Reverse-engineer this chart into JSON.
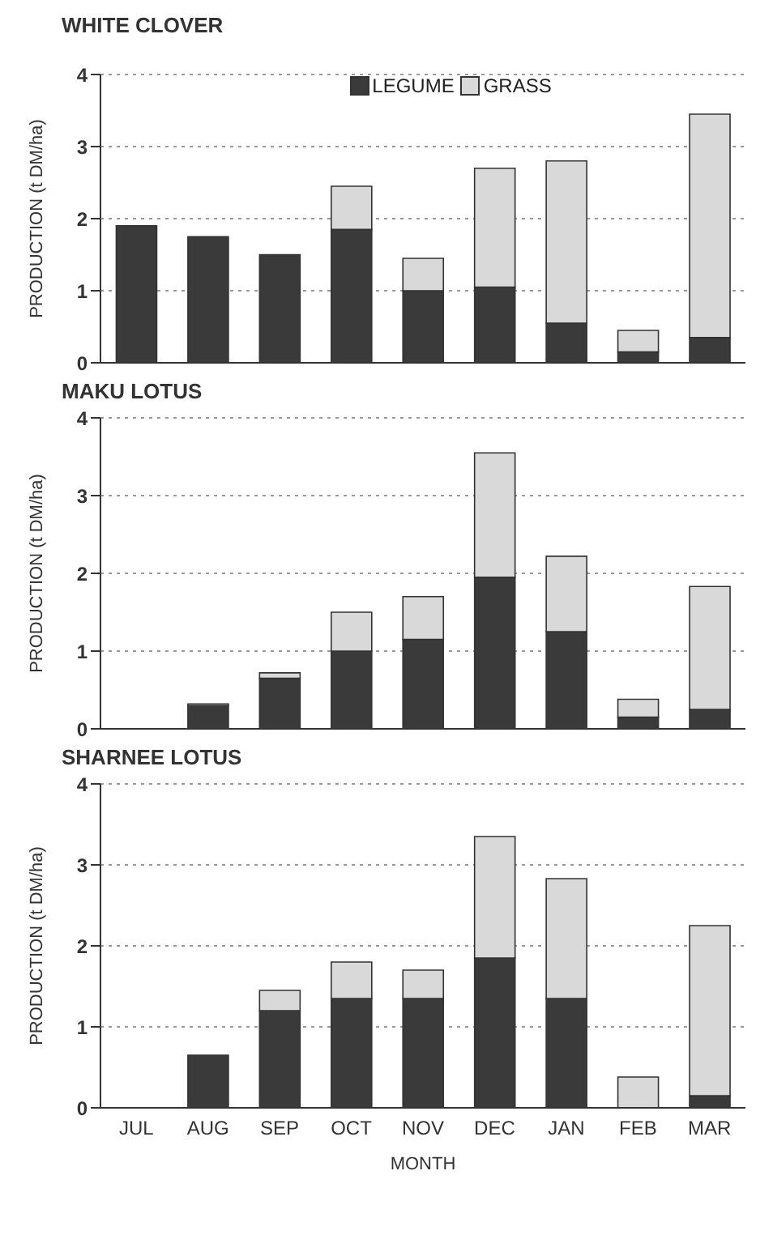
{
  "chart_data": [
    {
      "type": "bar",
      "title": "WHITE CLOVER",
      "ylabel": "PRODUCTION (t DM/ha)",
      "categories": [
        null,
        null,
        null,
        null,
        null,
        null,
        null,
        null,
        null
      ],
      "stacked": true,
      "ylim": [
        0,
        4
      ],
      "yticks": [
        0,
        1,
        2,
        3,
        4
      ],
      "grid": "y",
      "legend": "top",
      "tick_labels": "y",
      "series": [
        {
          "name": "LEGUME",
          "color": "#3a3a3a",
          "values": [
            1.9,
            1.75,
            1.5,
            1.85,
            1.0,
            1.05,
            0.55,
            0.15,
            0.35
          ]
        },
        {
          "name": "GRASS",
          "color": "#d9d9d9",
          "values": [
            0,
            0,
            0,
            0.6,
            0.45,
            1.65,
            2.25,
            0.3,
            3.1
          ]
        }
      ]
    },
    {
      "type": "bar",
      "title": "MAKU LOTUS",
      "ylabel": "PRODUCTION (t DM/ha)",
      "categories": [
        null,
        null,
        null,
        null,
        null,
        null,
        null,
        null,
        null
      ],
      "stacked": true,
      "ylim": [
        0,
        4
      ],
      "yticks": [
        0,
        1,
        2,
        3,
        4
      ],
      "grid": "y",
      "tick_labels": "y",
      "series": [
        {
          "color": "#3a3a3a",
          "values": [
            0,
            0.3,
            0.65,
            1.0,
            1.15,
            1.95,
            1.25,
            0.15,
            0.25
          ]
        },
        {
          "color": "#d9d9d9",
          "values": [
            0,
            0.02,
            0.07,
            0.5,
            0.55,
            1.6,
            0.97,
            0.23,
            1.58
          ]
        }
      ]
    },
    {
      "type": "bar",
      "title": "SHARNEE LOTUS",
      "xlabel": "MONTH",
      "ylabel": "PRODUCTION (t DM/ha)",
      "categories": [
        "JUL",
        "AUG",
        "SEP",
        "OCT",
        "NOV",
        "DEC",
        "JAN",
        "FEB",
        "MAR"
      ],
      "stacked": true,
      "ylim": [
        0,
        4
      ],
      "yticks": [
        0,
        1,
        2,
        3,
        4
      ],
      "grid": "y",
      "series": [
        {
          "color": "#3a3a3a",
          "values": [
            0,
            0.65,
            1.2,
            1.35,
            1.35,
            1.85,
            1.35,
            0,
            0.15
          ]
        },
        {
          "color": "#d9d9d9",
          "values": [
            0,
            0,
            0.25,
            0.45,
            0.35,
            1.5,
            1.48,
            0.38,
            2.1
          ]
        }
      ]
    }
  ]
}
